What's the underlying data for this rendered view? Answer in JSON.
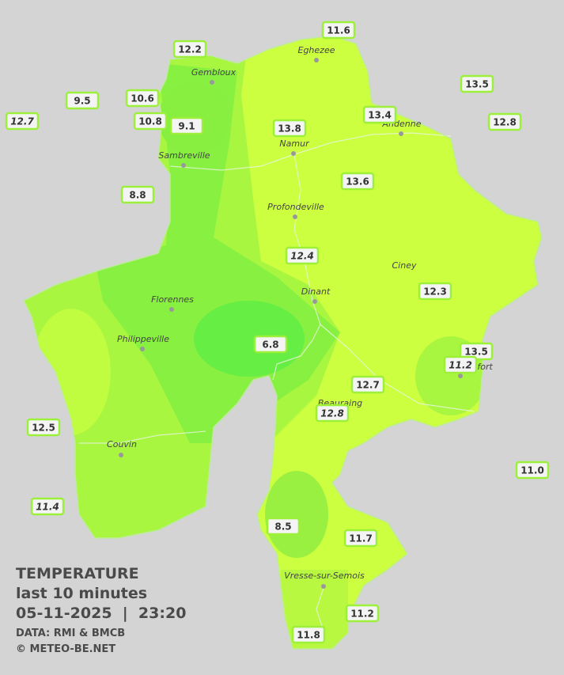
{
  "map": {
    "towns": [
      "Eghezee",
      "Gembloux",
      "Andenne",
      "Sambreville",
      "Namur",
      "Profondeville",
      "Ciney",
      "Dinant",
      "Florennes",
      "Philippeville",
      "Rochefort",
      "Beauraing",
      "Couvin",
      "Vresse-sur-Semois"
    ],
    "stations": [
      "12.2",
      "11.6",
      "9.5",
      "10.6",
      "12.7",
      "10.8",
      "9.1",
      "13.5",
      "13.4",
      "12.8",
      "13.8",
      "13.6",
      "8.8",
      "12.4",
      "12.3",
      "6.8",
      "13.5",
      "11.2",
      "12.7",
      "12.8",
      "12.5",
      "11.0",
      "11.4",
      "8.5",
      "11.7",
      "11.2",
      "11.8"
    ]
  },
  "legend": {
    "title": "TEMPERATURE",
    "subtitle": "last 10 minutes",
    "timestamp": "05-11-2025  |  23:20",
    "source": "DATA: RMI & BMCB",
    "credit": "© METEO-BE.NET"
  }
}
